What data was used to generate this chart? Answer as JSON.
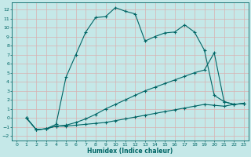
{
  "bg_color": "#c5e8e8",
  "grid_color": "#d8b0b0",
  "line_color": "#006666",
  "marker": "+",
  "markersize": 3,
  "linewidth": 0.8,
  "xlabel": "Humidex (Indice chaleur)",
  "xlabel_fontsize": 5.5,
  "xlabel_fontweight": "bold",
  "tick_labelsize": 4.5,
  "xlim": [
    -0.5,
    23.5
  ],
  "ylim": [
    -2.5,
    12.8
  ],
  "yticks": [
    -2,
    -1,
    0,
    1,
    2,
    3,
    4,
    5,
    6,
    7,
    8,
    9,
    10,
    11,
    12
  ],
  "xticks": [
    0,
    1,
    2,
    3,
    4,
    5,
    6,
    7,
    8,
    9,
    10,
    11,
    12,
    13,
    14,
    15,
    16,
    17,
    18,
    19,
    20,
    21,
    22,
    23
  ],
  "series": [
    {
      "x": [
        1,
        2,
        3,
        4,
        5,
        6,
        7,
        8,
        9,
        10,
        11,
        12,
        13,
        14,
        15,
        16,
        17,
        18,
        19,
        20,
        21,
        22,
        23
      ],
      "y": [
        0,
        -1.3,
        -1.2,
        -0.7,
        4.5,
        7.0,
        9.5,
        11.1,
        11.2,
        12.2,
        11.8,
        11.5,
        8.5,
        9.0,
        9.4,
        9.5,
        10.3,
        9.5,
        7.5,
        2.5,
        1.8,
        1.5,
        1.6
      ]
    },
    {
      "x": [
        1,
        2,
        3,
        4,
        5,
        6,
        7,
        8,
        9,
        10,
        11,
        12,
        13,
        14,
        15,
        16,
        17,
        18,
        19,
        20,
        21,
        22,
        23
      ],
      "y": [
        0,
        -1.3,
        -1.2,
        -0.9,
        -0.9,
        -0.8,
        -0.7,
        -0.6,
        -0.5,
        -0.3,
        -0.1,
        0.1,
        0.3,
        0.5,
        0.7,
        0.9,
        1.1,
        1.3,
        1.5,
        1.4,
        1.3,
        1.5,
        1.6
      ]
    },
    {
      "x": [
        1,
        2,
        3,
        4,
        5,
        6,
        7,
        8,
        9,
        10,
        11,
        12,
        13,
        14,
        15,
        16,
        17,
        18,
        19,
        20,
        21,
        22,
        23
      ],
      "y": [
        0,
        -1.3,
        -1.2,
        -0.9,
        -0.8,
        -0.5,
        -0.1,
        0.4,
        1.0,
        1.5,
        2.0,
        2.5,
        3.0,
        3.4,
        3.8,
        4.2,
        4.6,
        5.0,
        5.3,
        7.2,
        1.8,
        1.5,
        1.6
      ]
    }
  ]
}
